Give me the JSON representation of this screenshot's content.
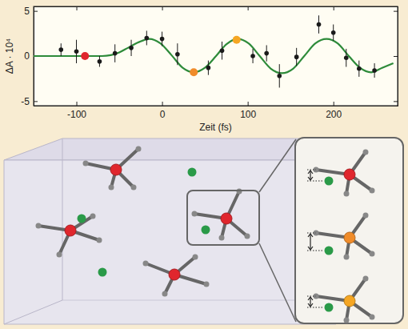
{
  "chart_data": {
    "type": "line",
    "xlabel": "Zeit (fs)",
    "ylabel": "ΔA · 10⁴",
    "xlim": [
      -150,
      275
    ],
    "ylim": [
      -5.5,
      5.5
    ],
    "xticks": [
      -100,
      0,
      100,
      200
    ],
    "yticks": [
      -5,
      0,
      5
    ],
    "grid": false,
    "series": [
      {
        "type": "scatter",
        "marker": "circle",
        "color": "#1a1a1a",
        "x": [
          -118,
          -100,
          -73,
          -55,
          -36,
          -18,
          0,
          18,
          54,
          70,
          106,
          122,
          137,
          157,
          183,
          200,
          215,
          230,
          248
        ],
        "values": [
          0.7,
          0.5,
          -0.6,
          0.3,
          0.9,
          2.0,
          1.9,
          0.2,
          -1.3,
          0.6,
          0.0,
          0.3,
          -2.2,
          -0.1,
          3.5,
          2.6,
          -0.2,
          -1.4,
          -1.6
        ],
        "errors": [
          0.7,
          1.3,
          0.6,
          1.0,
          0.9,
          0.8,
          0.8,
          1.2,
          0.8,
          1.0,
          0.8,
          0.9,
          1.3,
          1.0,
          1.0,
          0.9,
          1.0,
          0.9,
          0.8
        ]
      },
      {
        "type": "line",
        "line_style": "solid",
        "color": "#2e8b3a",
        "x": [
          -150,
          -120,
          -90,
          -70,
          -60,
          -50,
          -40,
          -28,
          -15,
          -2,
          11,
          24,
          37,
          50,
          63,
          75,
          88,
          101,
          114,
          127,
          140,
          153,
          166,
          179,
          192,
          205,
          218,
          231,
          244,
          257,
          270
        ],
        "values": [
          0,
          0,
          0,
          0,
          0.1,
          0.4,
          0.9,
          1.5,
          1.9,
          1.4,
          0.1,
          -1.3,
          -1.8,
          -1.3,
          0,
          1.3,
          1.9,
          1.4,
          0,
          -1.4,
          -1.9,
          -1.4,
          0,
          1.4,
          1.9,
          1.4,
          0,
          -1.3,
          -1.8,
          -1.3,
          -0.8
        ]
      },
      {
        "type": "scatter",
        "marker": "circle",
        "colors": [
          "#e0262d",
          "#f08c2a",
          "#f5a623"
        ],
        "x": [
          -90,
          37,
          87
        ],
        "values": [
          0,
          -1.8,
          1.8
        ]
      }
    ]
  }
}
